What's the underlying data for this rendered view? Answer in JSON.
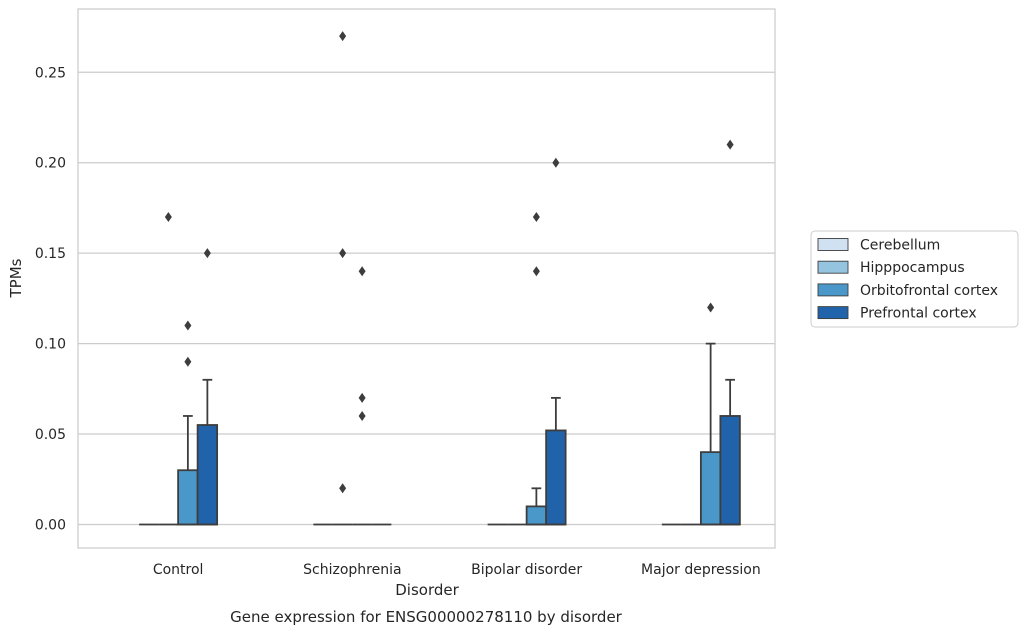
{
  "chart_data": {
    "type": "box",
    "title": "",
    "caption": "Gene expression for ENSG00000278110 by disorder",
    "xlabel": "Disorder",
    "ylabel": "TPMs",
    "ylim": [
      -0.013,
      0.285
    ],
    "yticks": [
      0.0,
      0.05,
      0.1,
      0.15,
      0.2,
      0.25
    ],
    "ytick_labels": [
      "0.00",
      "0.05",
      "0.10",
      "0.15",
      "0.20",
      "0.25"
    ],
    "grid": "horizontal",
    "legend_position": "right",
    "categories": [
      "Control",
      "Schizophrenia",
      "Bipolar disorder",
      "Major depression"
    ],
    "series": [
      {
        "name": "Cerebellum",
        "color": "#d0e1f2",
        "boxes": [
          {
            "q1": 0,
            "median": 0,
            "q3": 0,
            "whislo": 0,
            "whishi": 0,
            "fliers": []
          },
          {
            "q1": 0,
            "median": 0,
            "q3": 0,
            "whislo": 0,
            "whishi": 0,
            "fliers": []
          },
          {
            "q1": 0,
            "median": 0,
            "q3": 0,
            "whislo": 0,
            "whishi": 0,
            "fliers": []
          },
          {
            "q1": 0,
            "median": 0,
            "q3": 0,
            "whislo": 0,
            "whishi": 0,
            "fliers": []
          }
        ]
      },
      {
        "name": "Hipppocampus",
        "color": "#94c4df",
        "boxes": [
          {
            "q1": 0,
            "median": 0,
            "q3": 0,
            "whislo": 0,
            "whishi": 0,
            "fliers": [
              0.17
            ]
          },
          {
            "q1": 0,
            "median": 0,
            "q3": 0,
            "whislo": 0,
            "whishi": 0,
            "fliers": [
              0.27,
              0.15,
              0.02
            ]
          },
          {
            "q1": 0,
            "median": 0,
            "q3": 0,
            "whislo": 0,
            "whishi": 0,
            "fliers": []
          },
          {
            "q1": 0,
            "median": 0,
            "q3": 0,
            "whislo": 0,
            "whishi": 0,
            "fliers": []
          }
        ]
      },
      {
        "name": "Orbitofrontal cortex",
        "color": "#4a98c9",
        "boxes": [
          {
            "q1": 0,
            "median": 0,
            "q3": 0.03,
            "whislo": 0,
            "whishi": 0.06,
            "fliers": [
              0.11,
              0.09
            ]
          },
          {
            "q1": 0,
            "median": 0,
            "q3": 0,
            "whislo": 0,
            "whishi": 0,
            "fliers": [
              0.14,
              0.07,
              0.06
            ]
          },
          {
            "q1": 0,
            "median": 0,
            "q3": 0.01,
            "whislo": 0,
            "whishi": 0.02,
            "fliers": [
              0.17,
              0.14
            ]
          },
          {
            "q1": 0,
            "median": 0,
            "q3": 0.04,
            "whislo": 0,
            "whishi": 0.1,
            "fliers": [
              0.12
            ]
          }
        ]
      },
      {
        "name": "Prefrontal cortex",
        "color": "#2163aa",
        "boxes": [
          {
            "q1": 0,
            "median": 0,
            "q3": 0.055,
            "whislo": 0,
            "whishi": 0.08,
            "fliers": [
              0.15
            ]
          },
          {
            "q1": 0,
            "median": 0,
            "q3": 0,
            "whislo": 0,
            "whishi": 0,
            "fliers": []
          },
          {
            "q1": 0,
            "median": 0,
            "q3": 0.052,
            "whislo": 0,
            "whishi": 0.07,
            "fliers": [
              0.2
            ]
          },
          {
            "q1": 0,
            "median": 0,
            "q3": 0.06,
            "whislo": 0,
            "whishi": 0.08,
            "fliers": [
              0.21
            ]
          }
        ]
      }
    ]
  }
}
